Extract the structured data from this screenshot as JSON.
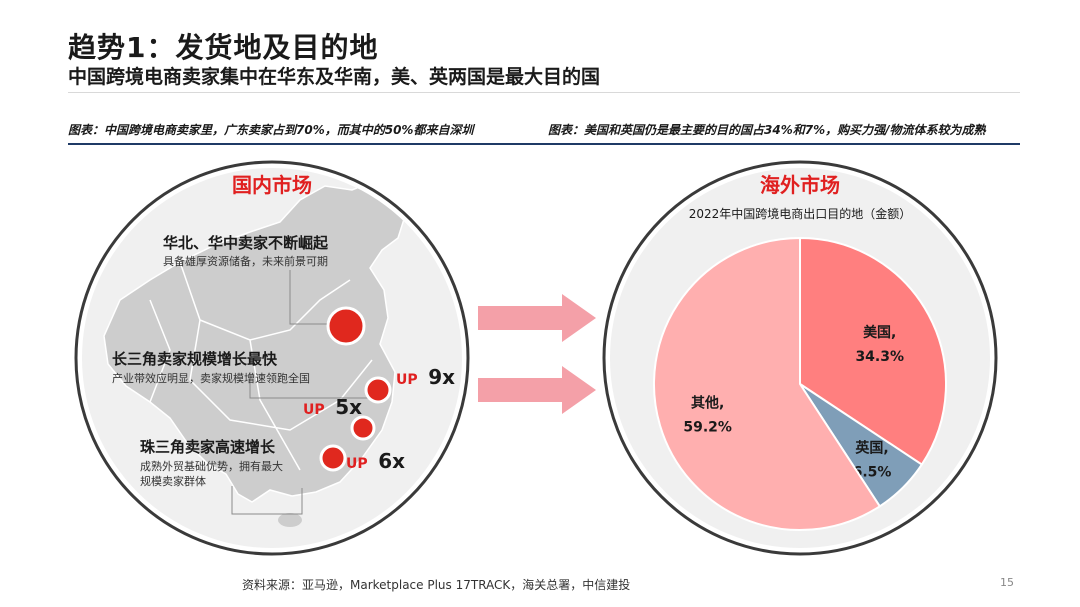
{
  "header": {
    "title": "趋势1：发货地及目的地",
    "subtitle": "中国跨境电商卖家集中在华东及华南，美、英两国是最大目的国"
  },
  "captions": {
    "left": "图表：中国跨境电商卖家里，广东卖家占到70%，而其中的50%都来自深圳",
    "right": "图表：美国和英国仍是最主要的目的国占34%和7%，购买力强/物流体系较为成熟"
  },
  "domestic": {
    "heading": "国内市场",
    "north": {
      "title": "华北、华中卖家不断崛起",
      "desc": "具备雄厚资源储备，未来前景可期"
    },
    "yangtze": {
      "title": "长三角卖家规模增长最快",
      "desc": "产业带效应明显，卖家规模增速领跑全国"
    },
    "pearl": {
      "title": "珠三角卖家高速增长",
      "desc_line1": "成熟外贸基础优势，拥有最大",
      "desc_line2": "规模卖家群体"
    },
    "badges": [
      {
        "up": "UP",
        "value": "9x"
      },
      {
        "up": "UP",
        "value": "5x"
      },
      {
        "up": "UP",
        "value": "6x"
      }
    ]
  },
  "overseas": {
    "heading": "海外市场",
    "chart_title": "2022年中国跨境电商出口目的地（金额）"
  },
  "chart_data": {
    "type": "pie",
    "title": "2022年中国跨境电商出口目的地（金额）",
    "slices": [
      {
        "label": "美国,",
        "value": 34.3,
        "value_label": "34.3%",
        "color": "#ff7f7f"
      },
      {
        "label": "英国,",
        "value": 6.5,
        "value_label": "6.5%",
        "color": "#7f9eb8"
      },
      {
        "label": "其他,",
        "value": 59.2,
        "value_label": "59.2%",
        "color": "#ffafaf"
      }
    ],
    "start_angle_deg": 0,
    "direction": "clockwise"
  },
  "colors": {
    "accent_red": "#e02020",
    "navy": "#1f3a66",
    "arrow": "#f4a0a8"
  },
  "footer": {
    "source": "资料来源：亚马逊，Marketplace Plus 17TRACK，海关总署，中信建投",
    "page": "15"
  }
}
